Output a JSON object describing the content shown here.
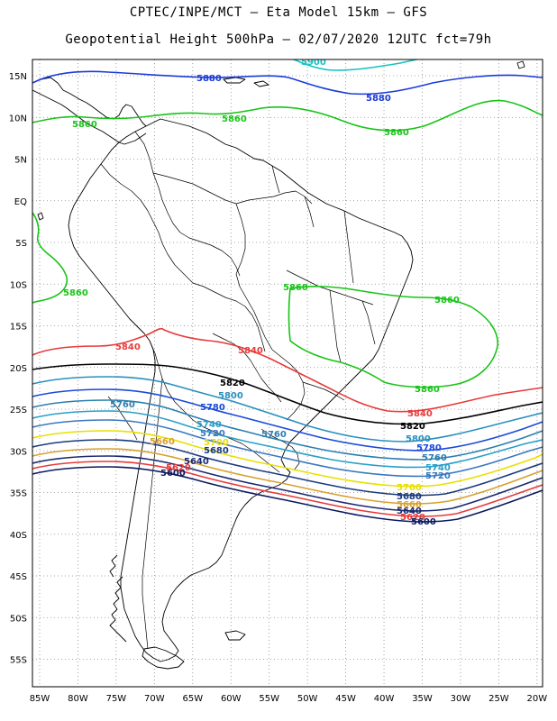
{
  "title_line1": "CPTEC/INPE/MCT –  Eta Model 15km – GFS",
  "title_line2": "Geopotential Height 500hPa – 02/07/2020 12UTC fct=79h",
  "lat_labels": [
    "15N",
    "10N",
    "5N",
    "EQ",
    "5S",
    "10S",
    "15S",
    "20S",
    "25S",
    "30S",
    "35S",
    "40S",
    "45S",
    "50S",
    "55S"
  ],
  "lon_labels": [
    "85W",
    "80W",
    "75W",
    "70W",
    "65W",
    "60W",
    "55W",
    "50W",
    "45W",
    "40W",
    "35W",
    "30W",
    "25W",
    "20W"
  ],
  "colors": {
    "5900": "#17c0c0",
    "5880": "#1a3cd8",
    "5860": "#18c418",
    "5840": "#e83a3a",
    "5820": "#000000",
    "5800": "#2a8fbf",
    "5780": "#1a4ad8",
    "5760": "#2a7fb0",
    "5740": "#2a9fc8",
    "5720": "#3a78c0",
    "5700": "#e8e000",
    "5680": "#1a3a80",
    "5660": "#d8a030",
    "5640": "#1a2a70",
    "5620": "#e83a3a",
    "5600": "#0a1a60"
  },
  "contour_labels": [
    {
      "text": "5900",
      "level": "5900"
    },
    {
      "text": "5880",
      "level": "5880"
    },
    {
      "text": "5880",
      "level": "5880"
    },
    {
      "text": "5860",
      "level": "5860"
    },
    {
      "text": "5860",
      "level": "5860"
    },
    {
      "text": "5860",
      "level": "5860"
    },
    {
      "text": "5860",
      "level": "5860"
    },
    {
      "text": "5860",
      "level": "5860"
    },
    {
      "text": "5860",
      "level": "5860"
    },
    {
      "text": "5860",
      "level": "5860"
    },
    {
      "text": "5840",
      "level": "5840"
    },
    {
      "text": "5840",
      "level": "5840"
    },
    {
      "text": "5840",
      "level": "5840"
    },
    {
      "text": "5820",
      "level": "5820"
    },
    {
      "text": "5820",
      "level": "5820"
    },
    {
      "text": "5800",
      "level": "5800"
    },
    {
      "text": "5800",
      "level": "5800"
    },
    {
      "text": "5780",
      "level": "5780"
    },
    {
      "text": "5780",
      "level": "5780"
    },
    {
      "text": "5760",
      "level": "5760"
    },
    {
      "text": "5760",
      "level": "5760"
    },
    {
      "text": "5760",
      "level": "5760"
    },
    {
      "text": "5740",
      "level": "5740"
    },
    {
      "text": "5740",
      "level": "5740"
    },
    {
      "text": "5720",
      "level": "5720"
    },
    {
      "text": "5720",
      "level": "5720"
    },
    {
      "text": "5700",
      "level": "5700"
    },
    {
      "text": "5700",
      "level": "5700"
    },
    {
      "text": "5680",
      "level": "5680"
    },
    {
      "text": "5680",
      "level": "5680"
    },
    {
      "text": "5660",
      "level": "5660"
    },
    {
      "text": "5660",
      "level": "5660"
    },
    {
      "text": "5640",
      "level": "5640"
    },
    {
      "text": "5640",
      "level": "5640"
    },
    {
      "text": "5620",
      "level": "5620"
    },
    {
      "text": "5620",
      "level": "5620"
    },
    {
      "text": "5600",
      "level": "5600"
    },
    {
      "text": "5600",
      "level": "5600"
    }
  ]
}
